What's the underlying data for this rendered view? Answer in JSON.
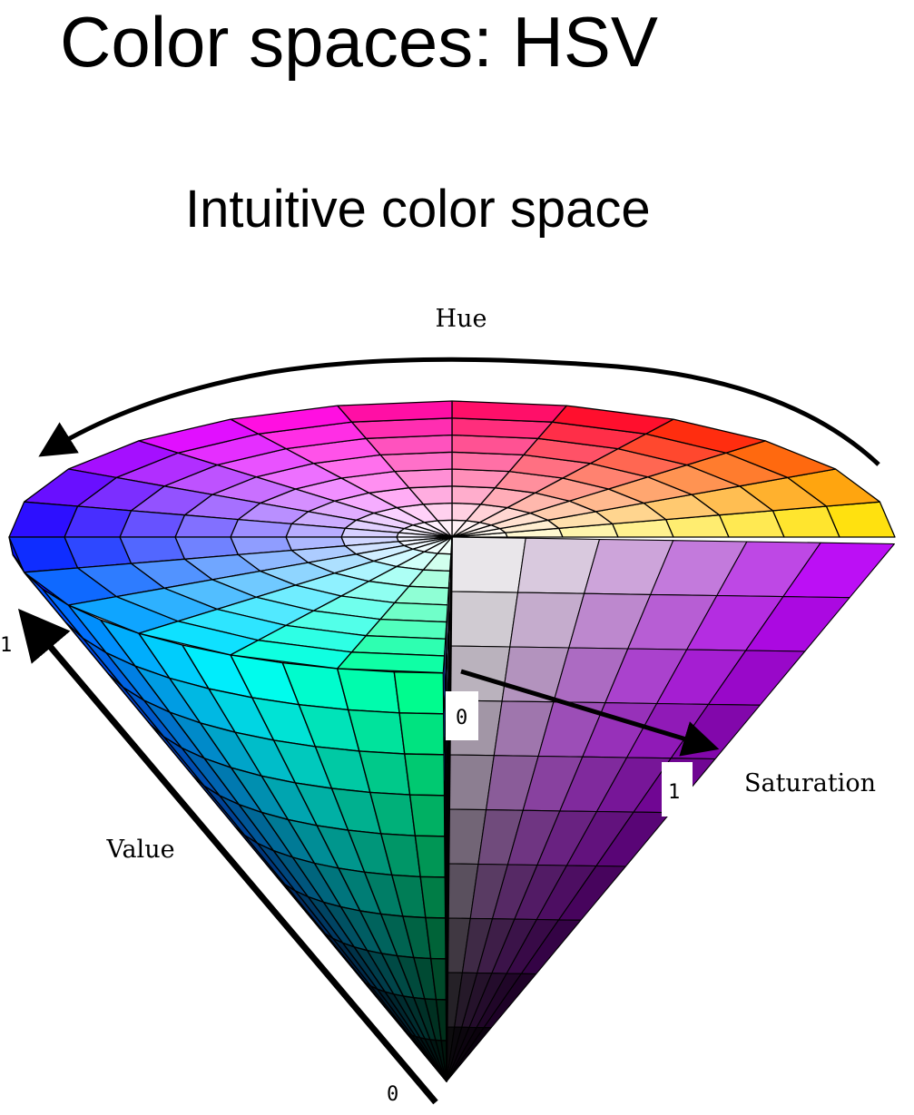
{
  "title": "Color spaces: HSV",
  "subtitle": "Intuitive color space",
  "diagram": {
    "hue_label": "Hue",
    "value_label": "Value",
    "saturation_label": "Saturation",
    "value_top": "1",
    "value_bottom": "0",
    "saturation_start": "0",
    "saturation_end": "1"
  }
}
